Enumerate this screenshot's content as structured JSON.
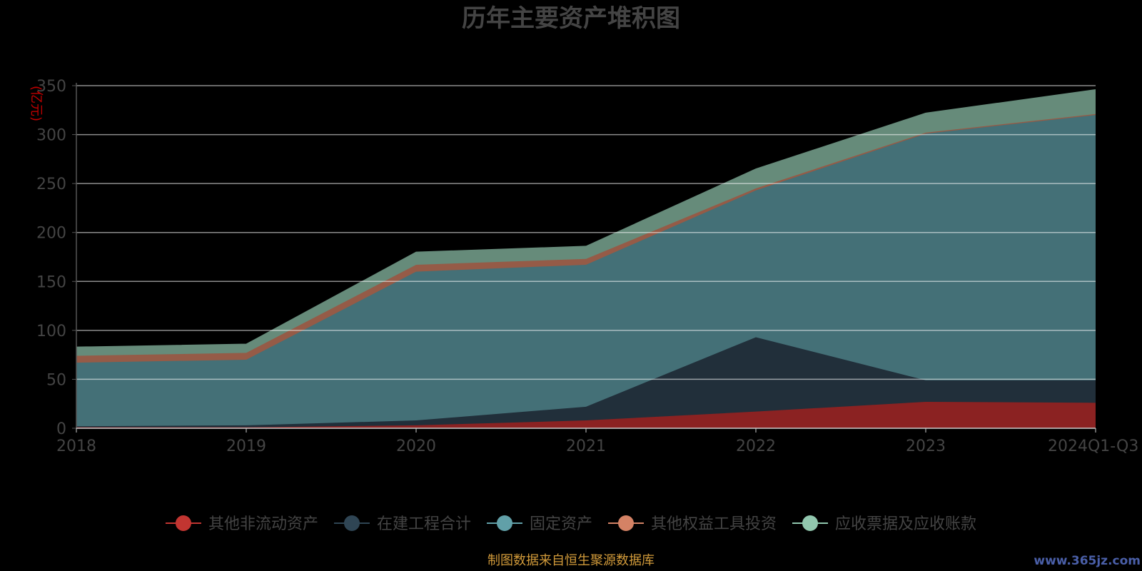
{
  "title": "历年主要资产堆积图",
  "unit_label": "(亿元)",
  "source_note": "制图数据来自恒生聚源数据库",
  "watermark": "www.365jz.com",
  "chart_data": {
    "type": "area",
    "stacked": true,
    "title": "历年主要资产堆积图",
    "ylabel": "(亿元)",
    "ylim": [
      0,
      350
    ],
    "yticks": [
      0,
      50,
      100,
      150,
      200,
      250,
      300,
      350
    ],
    "grid": true,
    "legend_position": "bottom",
    "categories": [
      "2018",
      "2019",
      "2020",
      "2021",
      "2022",
      "2023",
      "2024Q1-Q3"
    ],
    "series": [
      {
        "name": "其他非流动资产",
        "color": "#c23531",
        "fill": "#8b2222",
        "values": [
          1,
          1,
          3,
          8,
          17,
          27,
          26
        ]
      },
      {
        "name": "在建工程合计",
        "color": "#2f4554",
        "fill": "#212f3a",
        "values": [
          1,
          2,
          5,
          14,
          76,
          22,
          23
        ]
      },
      {
        "name": "固定资产",
        "color": "#61a0a8",
        "fill": "#447077",
        "values": [
          65,
          67,
          152,
          145,
          150,
          252,
          271
        ]
      },
      {
        "name": "其他权益工具投资",
        "color": "#d48265",
        "fill": "#955b47",
        "values": [
          7,
          7,
          7,
          6,
          2,
          1,
          1
        ]
      },
      {
        "name": "应收票据及应收账款",
        "color": "#91c7ae",
        "fill": "#668b7a",
        "values": [
          9,
          9,
          13,
          13,
          20,
          20,
          25
        ]
      }
    ]
  }
}
